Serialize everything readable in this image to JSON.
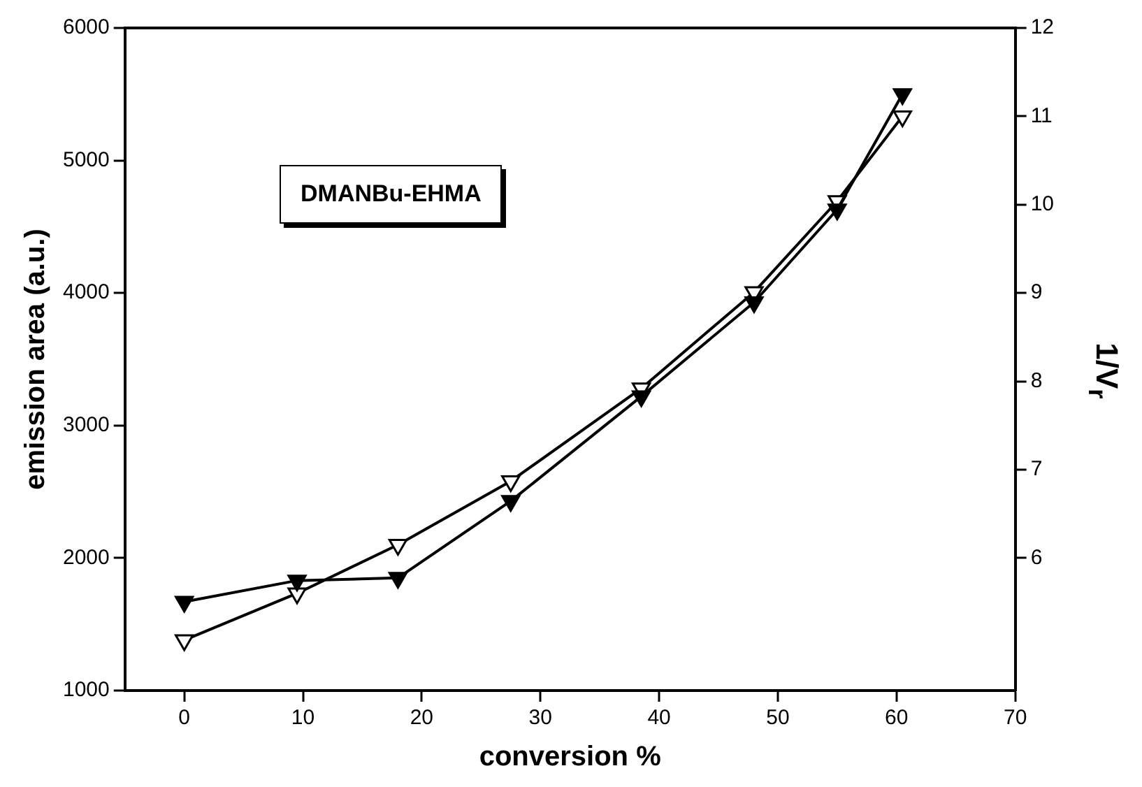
{
  "chart_data": {
    "type": "line",
    "xlabel": "conversion %",
    "ylabel": "emission area (a.u.)",
    "y2label": "1/V$_{r}$",
    "x": [
      0,
      9.5,
      18,
      27.5,
      38.5,
      48,
      55,
      60.5
    ],
    "series": [
      {
        "color": "#000000",
        "values": [
          1670,
          1830,
          1850,
          2430,
          3220,
          3930,
          4630,
          5500
        ]
      },
      {
        "color": "#ffffff",
        "axis": "y2",
        "values": [
          5.07,
          5.6,
          6.15,
          6.87,
          7.92,
          9.01,
          10.04,
          11.0
        ]
      }
    ],
    "xlim": [
      -5,
      70
    ],
    "xticks": [
      0,
      10,
      20,
      30,
      40,
      50,
      60,
      70
    ],
    "ylim": [
      1000,
      6000
    ],
    "yticks": [
      1000,
      2000,
      3000,
      4000,
      5000,
      6000
    ],
    "y2lim": [
      4.5,
      12
    ],
    "y2ticks": [
      6,
      7,
      8,
      9,
      10,
      11,
      12
    ],
    "marker": "triangle",
    "line_style": "solid",
    "grid": false,
    "legend": false,
    "annotations": [
      "DMANBu-EHMA"
    ]
  }
}
